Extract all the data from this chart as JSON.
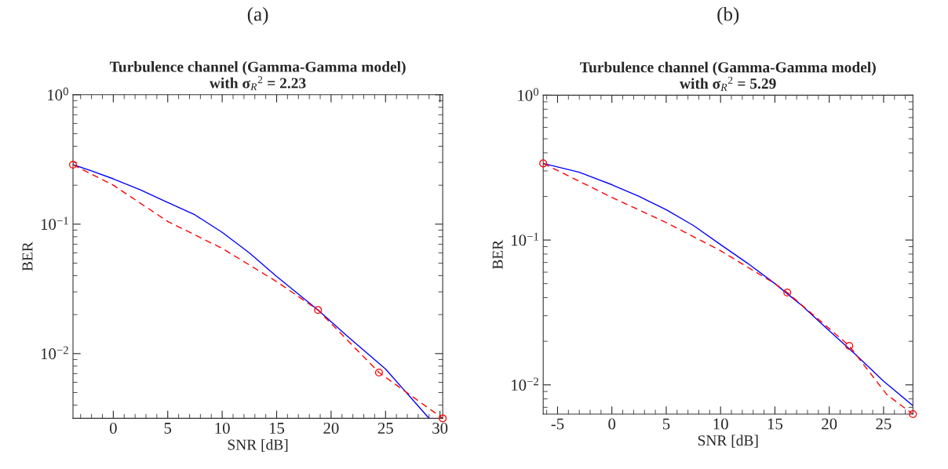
{
  "chart_data": [
    {
      "type": "line",
      "title": "Turbulence channel (Gamma-Gamma model)\nwith σ$_{R}$$^{2}$ = 2.23",
      "xlabel": "SNR [dB]",
      "ylabel": "BER",
      "annotations": [
        "(a)"
      ],
      "log": "y",
      "grid": false,
      "xlim": [
        -3.7,
        30.25
      ],
      "xticks": [
        0,
        5,
        10,
        15,
        20,
        25,
        30
      ],
      "ylim": [
        0.00316,
        1
      ],
      "yticks": [
        {
          "value": 0.01,
          "label": "10$^{−2}$"
        },
        {
          "value": 0.1,
          "label": "10$^{−1}$"
        },
        {
          "value": 1,
          "label": "10$^{0}$"
        }
      ],
      "series": [
        {
          "color": "#0000ff",
          "line_style": "solid",
          "marker": "none",
          "x": [
            -3.7,
            -2,
            0,
            2.5,
            5,
            7.5,
            10,
            12.5,
            15,
            18.8,
            21.5,
            25,
            29
          ],
          "values": [
            0.288,
            0.258,
            0.224,
            0.184,
            0.147,
            0.118,
            0.0865,
            0.06,
            0.0394,
            0.0217,
            0.0136,
            0.0076,
            0.00316
          ]
        },
        {
          "color": "#ff0000",
          "line_style": "dashed",
          "marker": "none",
          "x": [
            -3.7,
            0,
            5,
            10,
            15,
            18.8,
            24.4,
            30.25
          ],
          "values": [
            0.288,
            0.2,
            0.105,
            0.065,
            0.036,
            0.0217,
            0.00714,
            0.00316
          ]
        },
        {
          "type": "scatter",
          "color": "#ff0000",
          "marker": "circle",
          "x": [
            -3.7,
            18.8,
            24.4,
            30.25
          ],
          "values": [
            0.288,
            0.0217,
            0.00714,
            0.00316
          ]
        }
      ]
    },
    {
      "type": "line",
      "title": "Turbulence channel (Gamma-Gamma model)\nwith σ$_{R}$$^{2}$ = 5.29",
      "xlabel": "SNR [dB]",
      "ylabel": "BER",
      "annotations": [
        "(b)"
      ],
      "log": "y",
      "grid": false,
      "xlim": [
        -6.32,
        27.7
      ],
      "xticks": [
        -5,
        0,
        5,
        10,
        15,
        20,
        25
      ],
      "ylim": [
        0.00628,
        1
      ],
      "yticks": [
        {
          "value": 0.01,
          "label": "10$^{−2}$"
        },
        {
          "value": 0.1,
          "label": "10$^{−1}$"
        },
        {
          "value": 1,
          "label": "10$^{0}$"
        }
      ],
      "series": [
        {
          "color": "#0000ff",
          "line_style": "solid",
          "marker": "none",
          "x": [
            -6.32,
            -3,
            0,
            2.5,
            5,
            7.5,
            10,
            12.5,
            15,
            17.5,
            20,
            22.5,
            25,
            27.7
          ],
          "values": [
            0.338,
            0.294,
            0.241,
            0.2,
            0.162,
            0.126,
            0.093,
            0.069,
            0.05,
            0.0352,
            0.0236,
            0.016,
            0.0106,
            0.00719
          ]
        },
        {
          "color": "#ff0000",
          "line_style": "dashed",
          "marker": "none",
          "x": [
            -6.32,
            0,
            5,
            10,
            15,
            16.14,
            21.84,
            25.3,
            27.7
          ],
          "values": [
            0.338,
            0.197,
            0.132,
            0.0844,
            0.05,
            0.0434,
            0.0186,
            0.00857,
            0.00628
          ]
        },
        {
          "type": "scatter",
          "color": "#ff0000",
          "marker": "circle",
          "x": [
            -6.32,
            16.14,
            21.84,
            27.7
          ],
          "values": [
            0.338,
            0.0434,
            0.0186,
            0.00628
          ]
        }
      ]
    }
  ]
}
